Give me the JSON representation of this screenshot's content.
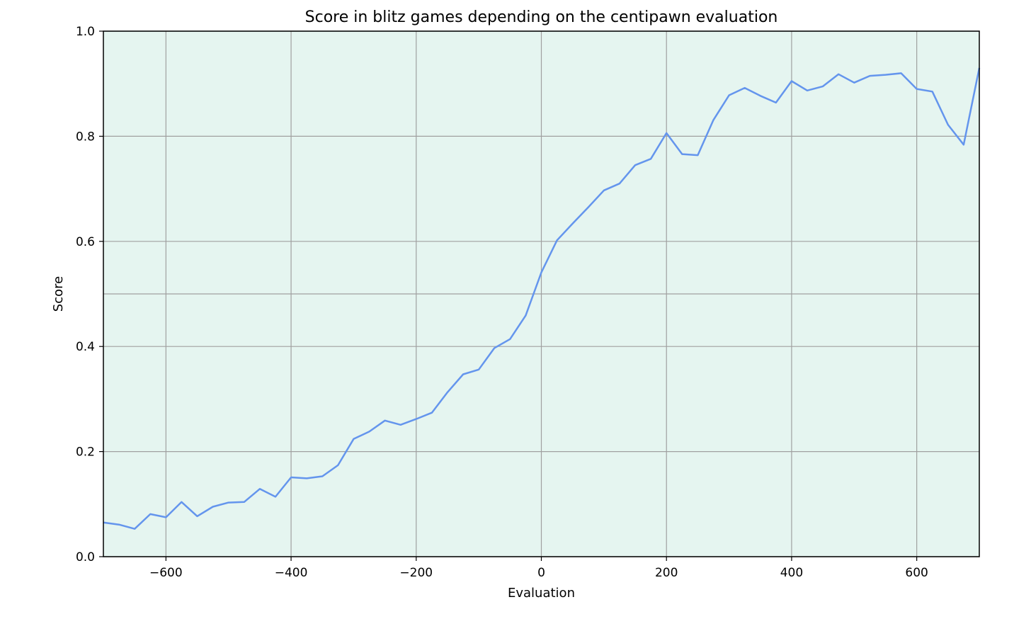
{
  "chart_data": {
    "type": "line",
    "title": "Score in blitz games depending on the centipawn evaluation",
    "xlabel": "Evaluation",
    "ylabel": "Score",
    "xlim": [
      -700,
      700
    ],
    "ylim": [
      0,
      1
    ],
    "x_ticks": [
      -600,
      -400,
      -200,
      0,
      200,
      400,
      600
    ],
    "x_tick_labels": [
      "−600",
      "−400",
      "−200",
      "0",
      "200",
      "400",
      "600"
    ],
    "y_ticks": [
      0,
      0.2,
      0.4,
      0.6,
      0.8,
      1.0
    ],
    "y_tick_labels": [
      "0.0",
      "0.2",
      "0.4",
      "0.6",
      "0.8",
      "1.0"
    ],
    "extra_hlines": [
      0.5
    ],
    "grid": true,
    "legend": "none",
    "colors": {
      "background": "#e5f5f0",
      "line": "#6495ed",
      "grid": "#a0a0a0"
    },
    "series": [
      {
        "x": [
          -700,
          -675,
          -650,
          -625,
          -600,
          -575,
          -550,
          -525,
          -500,
          -475,
          -450,
          -425,
          -400,
          -375,
          -350,
          -325,
          -300,
          -275,
          -250,
          -225,
          -200,
          -175,
          -150,
          -125,
          -100,
          -75,
          -50,
          -25,
          0,
          25,
          50,
          75,
          100,
          125,
          150,
          175,
          200,
          225,
          250,
          275,
          300,
          325,
          350,
          375,
          400,
          425,
          450,
          475,
          500,
          525,
          550,
          575,
          600,
          625,
          650,
          675,
          700
        ],
        "y": [
          0.065,
          0.061,
          0.053,
          0.081,
          0.075,
          0.104,
          0.077,
          0.095,
          0.103,
          0.104,
          0.129,
          0.114,
          0.151,
          0.149,
          0.153,
          0.174,
          0.224,
          0.238,
          0.259,
          0.251,
          0.262,
          0.274,
          0.313,
          0.347,
          0.356,
          0.397,
          0.414,
          0.459,
          0.541,
          0.602,
          0.634,
          0.665,
          0.697,
          0.71,
          0.745,
          0.757,
          0.806,
          0.766,
          0.764,
          0.831,
          0.878,
          0.892,
          0.877,
          0.864,
          0.905,
          0.887,
          0.895,
          0.918,
          0.902,
          0.915,
          0.917,
          0.92,
          0.89,
          0.885,
          0.822,
          0.784,
          0.93
        ]
      }
    ]
  }
}
